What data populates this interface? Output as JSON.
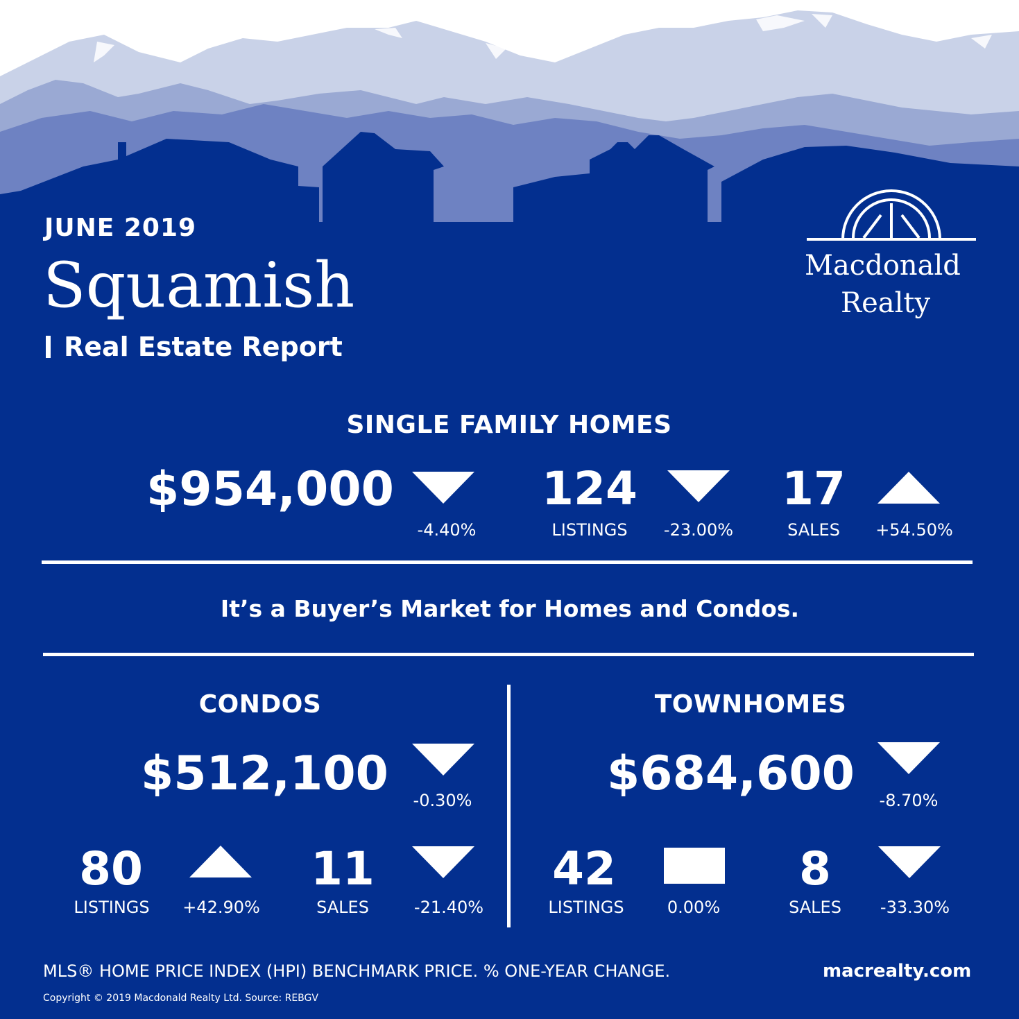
{
  "header": {
    "date": "JUNE 2019",
    "city": "Squamish",
    "subtitle": "Real Estate Report"
  },
  "brand": {
    "line1": "Macdonald",
    "line2": "Realty",
    "logo_icon": "arched-window-logo-icon"
  },
  "colors": {
    "background": "#032f8f",
    "text": "#ffffff",
    "mountain_back": "#c9d2e8",
    "mountain_mid": "#9aa9d3",
    "mountain_front": "#6e82c2"
  },
  "single_family": {
    "heading": "SINGLE FAMILY HOMES",
    "price": "$954,000",
    "price_change": "-4.40%",
    "price_trend": "down",
    "listings": "124",
    "listings_label": "LISTINGS",
    "listings_change": "-23.00%",
    "listings_trend": "down",
    "sales": "17",
    "sales_label": "SALES",
    "sales_change": "+54.50%",
    "sales_trend": "up"
  },
  "tagline": "It’s a Buyer’s Market for Homes and Condos.",
  "condos": {
    "heading": "CONDOS",
    "price": "$512,100",
    "price_change": "-0.30%",
    "price_trend": "down",
    "listings": "80",
    "listings_label": "LISTINGS",
    "listings_change": "+42.90%",
    "listings_trend": "up",
    "sales": "11",
    "sales_label": "SALES",
    "sales_change": "-21.40%",
    "sales_trend": "down"
  },
  "townhomes": {
    "heading": "TOWNHOMES",
    "price": "$684,600",
    "price_change": "-8.70%",
    "price_trend": "down",
    "listings": "42",
    "listings_label": "LISTINGS",
    "listings_change": "0.00%",
    "listings_trend": "flat",
    "sales": "8",
    "sales_label": "SALES",
    "sales_change": "-33.30%",
    "sales_trend": "down"
  },
  "footer": {
    "note": "MLS® HOME PRICE INDEX (HPI) BENCHMARK PRICE.  % ONE-YEAR CHANGE.",
    "website": "macrealty.com",
    "copyright": "Copyright © 2019 Macdonald Realty Ltd.  Source: REBGV"
  }
}
